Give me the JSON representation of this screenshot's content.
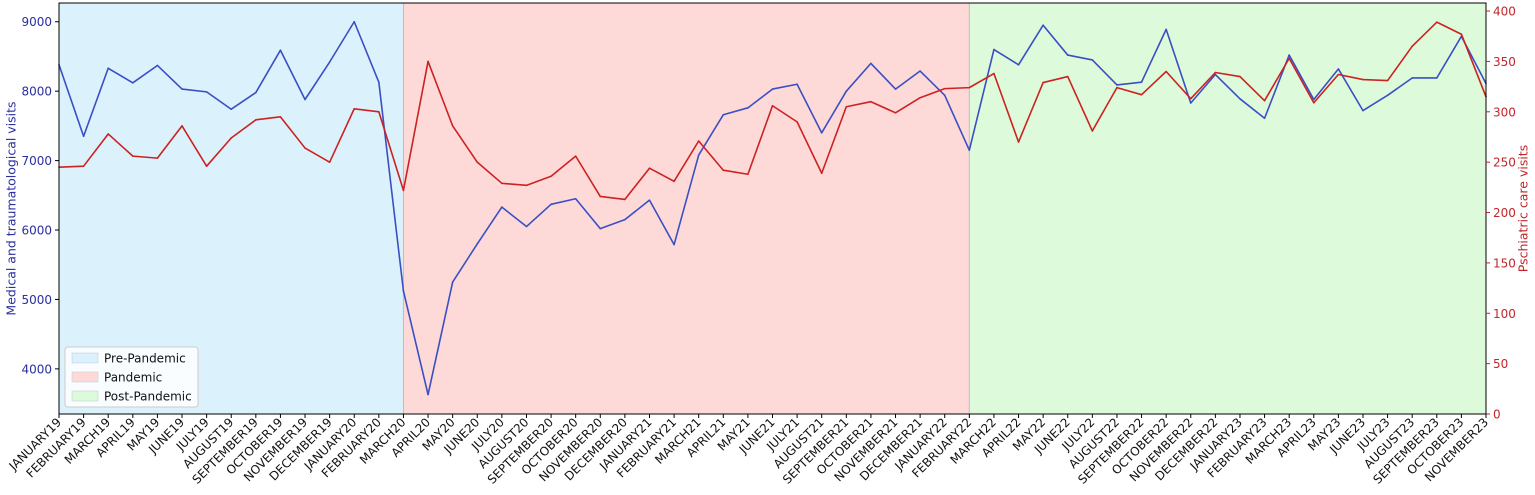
{
  "chart_data": {
    "type": "line",
    "ylabel_left": "Medical and traumatological visits",
    "ylabel_right": "Pschiatric care visits",
    "ylim_left": [
      3350,
      9270
    ],
    "ylim_right": [
      0,
      408
    ],
    "yticks_left": [
      4000,
      5000,
      6000,
      7000,
      8000,
      9000
    ],
    "yticks_right": [
      0,
      50,
      100,
      150,
      200,
      250,
      300,
      350,
      400
    ],
    "categories": [
      "JANUARY19",
      "FEBRUARY19",
      "MARCH19",
      "APRIL19",
      "MAY19",
      "JUNE19",
      "JULY19",
      "AUGUST19",
      "SEPTEMBER19",
      "OCTOBER19",
      "NOVEMBER19",
      "DECEMBER19",
      "JANUARY20",
      "FEBRUARY20",
      "MARCH20",
      "APRIL20",
      "MAY20",
      "JUNE20",
      "JULY20",
      "AUGUST20",
      "SEPTEMBER20",
      "OCTOBER20",
      "NOVEMBER20",
      "DECEMBER20",
      "JANUARY21",
      "FEBRUARY21",
      "MARCH21",
      "APRIL21",
      "MAY21",
      "JUNE21",
      "JULY21",
      "AUGUST21",
      "SEPTEMBER21",
      "OCTOBER21",
      "NOVEMBER21",
      "DECEMBER21",
      "JANUARY22",
      "FEBRUARY22",
      "MARCH22",
      "APRIL22",
      "MAY22",
      "JUNE22",
      "JULY22",
      "AUGUST22",
      "SEPTEMBER22",
      "OCTOBER22",
      "NOVEMBER22",
      "DECEMBER22",
      "JANUARY23",
      "FEBRUARY23",
      "MARCH23",
      "APRIL23",
      "MAY23",
      "JUNE23",
      "JULY23",
      "AUGUST23",
      "SEPTEMBER23",
      "OCTOBER23",
      "NOVEMBER23"
    ],
    "series": [
      {
        "axis": "left",
        "color": "#3b4fc4",
        "values": [
          8380,
          7350,
          8330,
          8120,
          8370,
          8030,
          7990,
          7740,
          7980,
          8590,
          7880,
          8420,
          9000,
          8130,
          5120,
          3630,
          5250,
          5800,
          6330,
          6050,
          6370,
          6450,
          6020,
          6150,
          6430,
          5790,
          7080,
          7660,
          7760,
          8030,
          8100,
          7400,
          8000,
          8400,
          8030,
          8290,
          7940,
          7150,
          8600,
          8380,
          8950,
          8520,
          8450,
          8090,
          8130,
          8890,
          7830,
          8240,
          7890,
          7610,
          8520,
          7880,
          8320,
          7720,
          7940,
          8190,
          8190,
          8790,
          8110
        ]
      },
      {
        "axis": "right",
        "color": "#cc2222",
        "values": [
          245,
          246,
          278,
          256,
          254,
          286,
          246,
          274,
          292,
          295,
          264,
          250,
          303,
          300,
          222,
          350,
          286,
          250,
          229,
          227,
          236,
          256,
          216,
          213,
          244,
          231,
          271,
          242,
          238,
          306,
          290,
          239,
          305,
          310,
          299,
          314,
          323,
          324,
          338,
          270,
          329,
          335,
          281,
          324,
          317,
          340,
          313,
          339,
          335,
          311,
          353,
          309,
          337,
          332,
          331,
          365,
          389,
          377,
          315
        ]
      }
    ],
    "bands": [
      {
        "label": "Pre-Pandemic",
        "from": "JANUARY19",
        "to": "MARCH20",
        "color": "#dbf1fc"
      },
      {
        "label": "Pandemic",
        "from": "MARCH20",
        "to": "FEBRUARY22",
        "color": "#fddad8"
      },
      {
        "label": "Post-Pandemic",
        "from": "FEBRUARY22",
        "to": "NOVEMBER23",
        "color": "#ddfadb"
      }
    ],
    "left_axis_color": "#2b2fa0",
    "right_axis_color": "#c2262a",
    "legend_position": "lower-left",
    "grid": false
  }
}
